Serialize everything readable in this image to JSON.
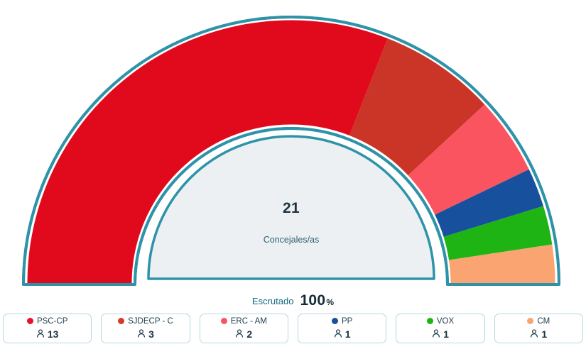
{
  "chart": {
    "center_value": "21",
    "center_label": "Concejales/as",
    "escrutado_label": "Escrutado",
    "escrutado_value": "100",
    "escrutado_unit": "%"
  },
  "chart_data": {
    "type": "gauge-semicircle",
    "title": "",
    "total_seats": 21,
    "total_label": "Concejales/as",
    "scrutiny_percent": 100,
    "series": [
      {
        "name": "PSC-CP",
        "seats": 13,
        "color": "#e10a1c"
      },
      {
        "name": "SJDECP - C",
        "seats": 3,
        "color": "#ca3528"
      },
      {
        "name": "ERC - AM",
        "seats": 2,
        "color": "#fb5461"
      },
      {
        "name": "PP",
        "seats": 1,
        "color": "#17519e"
      },
      {
        "name": "VOX",
        "seats": 1,
        "color": "#1eb414"
      },
      {
        "name": "CM",
        "seats": 1,
        "color": "#f9a471"
      }
    ],
    "ring_border_color": "#2e93a8",
    "inner_circle_fill": "#edf0f2",
    "background": "#ffffff",
    "arc_start_deg": 180,
    "arc_end_deg": 0
  },
  "legend": {
    "items": [
      {
        "label": "PSC-CP",
        "count": "13",
        "color": "#e8112d"
      },
      {
        "label": "SJDECP - C",
        "count": "3",
        "color": "#d6392b"
      },
      {
        "label": "ERC - AM",
        "count": "2",
        "color": "#fb5461"
      },
      {
        "label": "PP",
        "count": "1",
        "color": "#17519e"
      },
      {
        "label": "VOX",
        "count": "1",
        "color": "#1eb414"
      },
      {
        "label": "CM",
        "count": "1",
        "color": "#f9a471"
      }
    ]
  }
}
